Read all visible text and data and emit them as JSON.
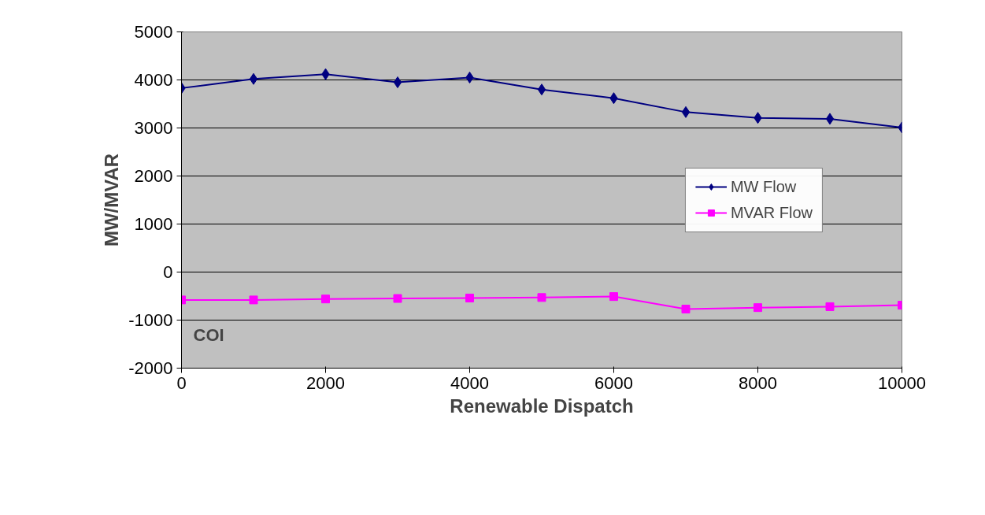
{
  "chart_data": {
    "type": "line",
    "xlabel": "Renewable Dispatch",
    "ylabel": "MW/MVAR",
    "x": [
      0,
      1000,
      2000,
      3000,
      4000,
      5000,
      6000,
      7000,
      8000,
      9000,
      10000
    ],
    "series": [
      {
        "name": "MW Flow",
        "color": "#000080",
        "marker": "diamond",
        "values": [
          3830,
          4020,
          4120,
          3950,
          4050,
          3800,
          3620,
          3330,
          3210,
          3190,
          3010
        ]
      },
      {
        "name": "MVAR Flow",
        "color": "#ff00ff",
        "marker": "square",
        "values": [
          -580,
          -580,
          -560,
          -550,
          -540,
          -530,
          -510,
          -770,
          -740,
          -720,
          -690
        ]
      }
    ],
    "xlim": [
      0,
      10000
    ],
    "xticks": [
      0,
      2000,
      4000,
      6000,
      8000,
      10000
    ],
    "ylim": [
      -2000,
      5000
    ],
    "yticks": [
      -2000,
      -1000,
      0,
      1000,
      2000,
      3000,
      4000,
      5000
    ],
    "grid": "y",
    "legend": "right",
    "line_style": "solid",
    "annotations": [
      "COI"
    ]
  }
}
